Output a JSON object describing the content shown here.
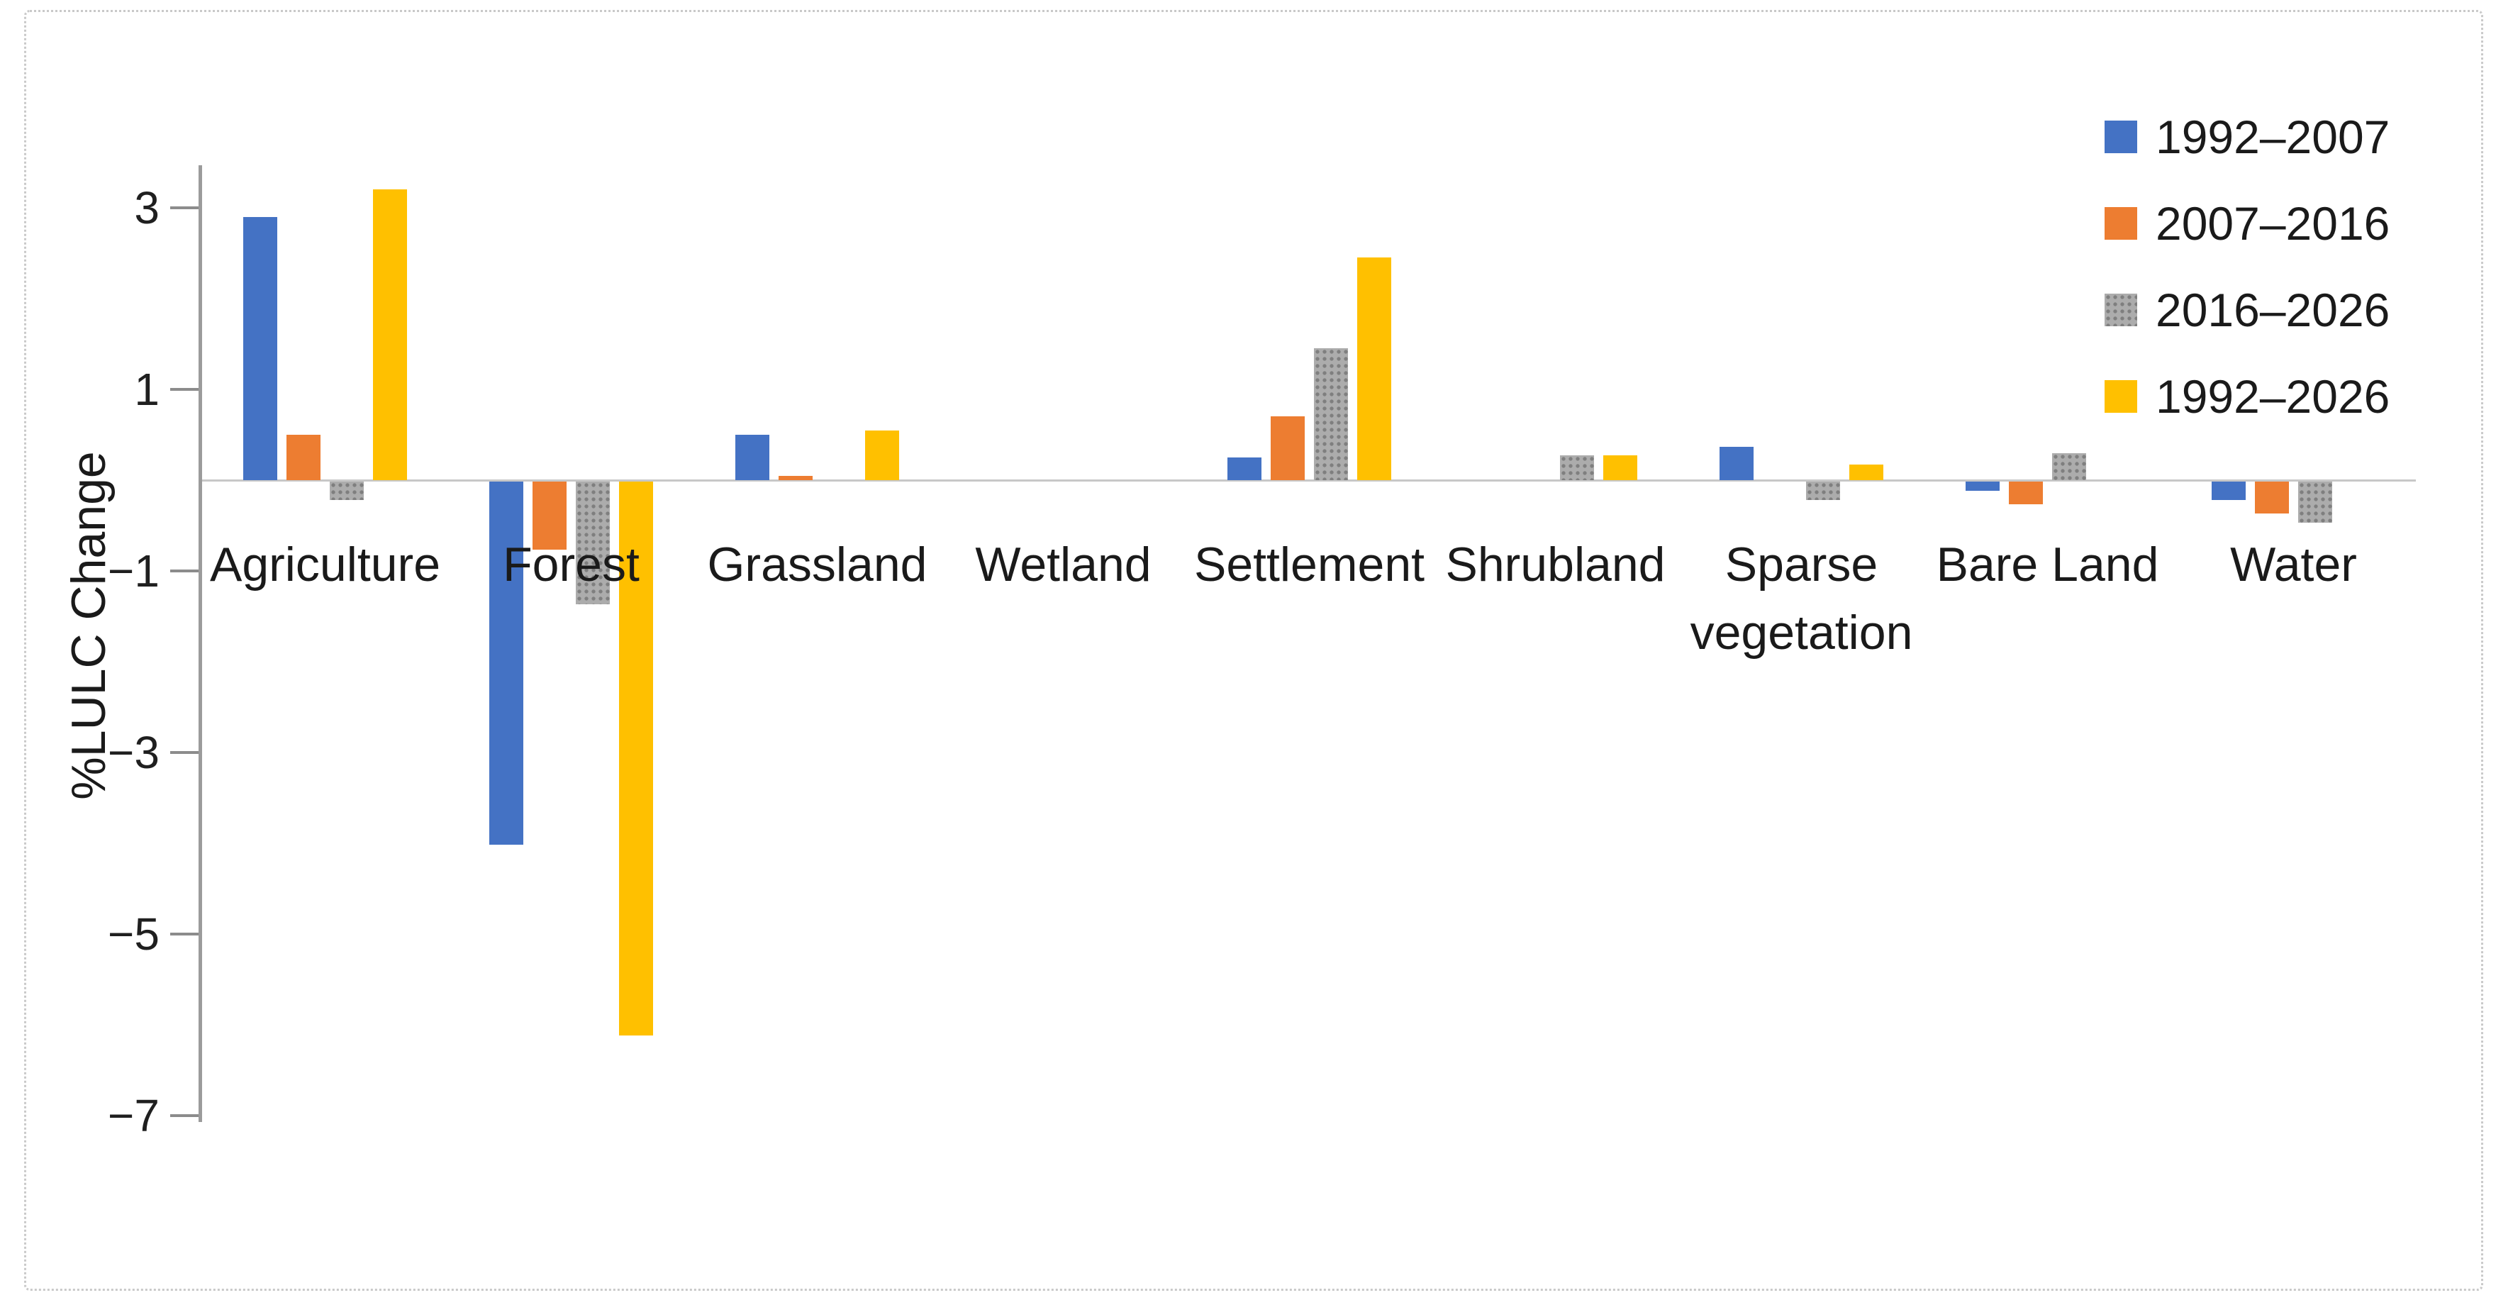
{
  "chart_data": {
    "type": "bar",
    "title": "",
    "xlabel": "",
    "ylabel": "%LULC Change",
    "categories": [
      "Agriculture",
      "Forest",
      "Grassland",
      "Wetland",
      "Settlement",
      "Shrubland",
      "Sparse vegetation",
      "Bare Land",
      "Water"
    ],
    "series": [
      {
        "name": "1992–2007",
        "color": "#4472C4",
        "pattern": "solid",
        "values": [
          2.9,
          -4.0,
          0.5,
          0,
          0.25,
          0,
          0.37,
          -0.1,
          -0.2
        ]
      },
      {
        "name": "2007–2016",
        "color": "#ED7D31",
        "pattern": "solid",
        "values": [
          0.5,
          -0.75,
          0.05,
          0,
          0.7,
          0,
          0,
          -0.25,
          -0.35
        ]
      },
      {
        "name": "2016–2026",
        "color": "#A6A6A6",
        "pattern": "dotted",
        "values": [
          -0.2,
          -1.35,
          0,
          0,
          1.45,
          0.27,
          -0.2,
          0.3,
          -0.45
        ]
      },
      {
        "name": "1992–2026",
        "color": "#FFC000",
        "pattern": "solid",
        "values": [
          3.2,
          -6.1,
          0.55,
          0,
          2.45,
          0.27,
          0.17,
          0,
          0
        ]
      }
    ],
    "y_ticks": [
      {
        "label": "3",
        "value": 3
      },
      {
        "label": "1",
        "value": 1
      },
      {
        "label": "−1",
        "value": -1
      },
      {
        "label": "−3",
        "value": -3
      },
      {
        "label": "−5",
        "value": -5
      },
      {
        "label": "−7",
        "value": -7
      }
    ],
    "ylim": [
      -7.6,
      3.45
    ],
    "grid": false,
    "legend_position": "top-right",
    "axis_color": "#9B9B9B",
    "zero_line_color": "#C8C8C8",
    "text_color": "#1A1A1A"
  }
}
